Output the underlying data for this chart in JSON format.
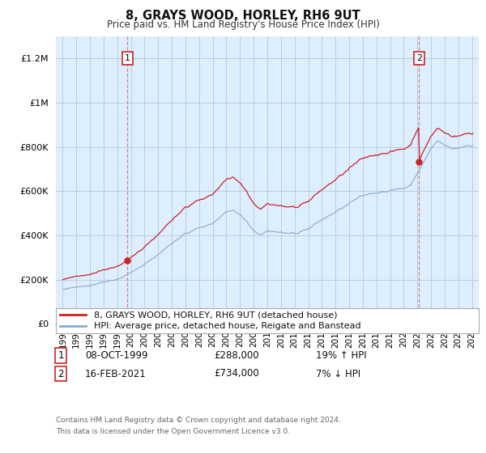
{
  "title": "8, GRAYS WOOD, HORLEY, RH6 9UT",
  "subtitle": "Price paid vs. HM Land Registry's House Price Index (HPI)",
  "legend_line1": "8, GRAYS WOOD, HORLEY, RH6 9UT (detached house)",
  "legend_line2": "HPI: Average price, detached house, Reigate and Banstead",
  "footnote": "Contains HM Land Registry data © Crown copyright and database right 2024.\nThis data is licensed under the Open Government Licence v3.0.",
  "sale1_date": "08-OCT-1999",
  "sale1_price": "£288,000",
  "sale1_hpi": "19% ↑ HPI",
  "sale2_date": "16-FEB-2021",
  "sale2_price": "£734,000",
  "sale2_hpi": "7% ↓ HPI",
  "sale1_year": 1999.75,
  "sale1_value": 288000,
  "sale2_year": 2021.12,
  "sale2_value": 734000,
  "price_color": "#cc2222",
  "hpi_color": "#88aacc",
  "background_color": "#ffffff",
  "plot_bg_color": "#ddeeff",
  "grid_color": "#bbccdd",
  "ylim": [
    0,
    1300000
  ],
  "yticks": [
    0,
    200000,
    400000,
    600000,
    800000,
    1000000,
    1200000
  ],
  "xlim_start": 1994.5,
  "xlim_end": 2025.5
}
